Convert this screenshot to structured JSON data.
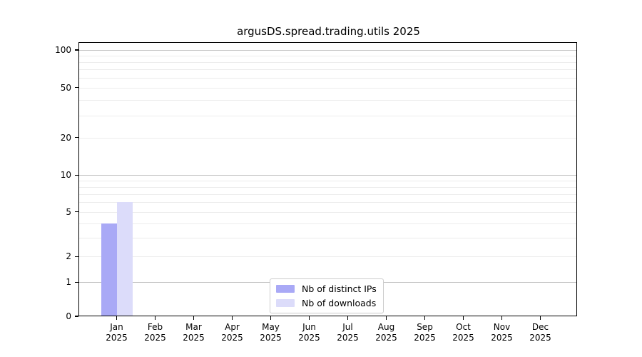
{
  "chart_data": {
    "type": "bar",
    "title": "argusDS.spread.trading.utils 2025",
    "categories": [
      "Jan 2025",
      "Feb 2025",
      "Mar 2025",
      "Apr 2025",
      "May 2025",
      "Jun 2025",
      "Jul 2025",
      "Aug 2025",
      "Sep 2025",
      "Oct 2025",
      "Nov 2025",
      "Dec 2025"
    ],
    "series": [
      {
        "name": "Nb of distinct IPs",
        "color": "#a9a9f6",
        "values": [
          4,
          0,
          0,
          0,
          0,
          0,
          0,
          0,
          0,
          0,
          0,
          0
        ]
      },
      {
        "name": "Nb of downloads",
        "color": "#dcdcfa",
        "values": [
          6,
          0,
          0,
          0,
          0,
          0,
          0,
          0,
          0,
          0,
          0,
          0
        ]
      }
    ],
    "xlabel": "",
    "ylabel": "",
    "yscale": "asinh",
    "ylim": [
      0,
      114
    ],
    "y_major_ticks": [
      0,
      1,
      2,
      5,
      10,
      20,
      50,
      100
    ],
    "y_decade_gridlines": [
      1,
      10,
      100
    ],
    "y_minor_gridlines": [
      2,
      3,
      4,
      5,
      6,
      7,
      8,
      9,
      20,
      30,
      40,
      50,
      60,
      70,
      80,
      90
    ],
    "grid": true,
    "legend_position": "lower center"
  },
  "colors": {
    "spine": "#000000",
    "decade_gridline": "#c3c3c3",
    "minor_gridline": "#ececec",
    "legend_border": "#cccccc",
    "background": "#ffffff",
    "text": "#000000"
  }
}
